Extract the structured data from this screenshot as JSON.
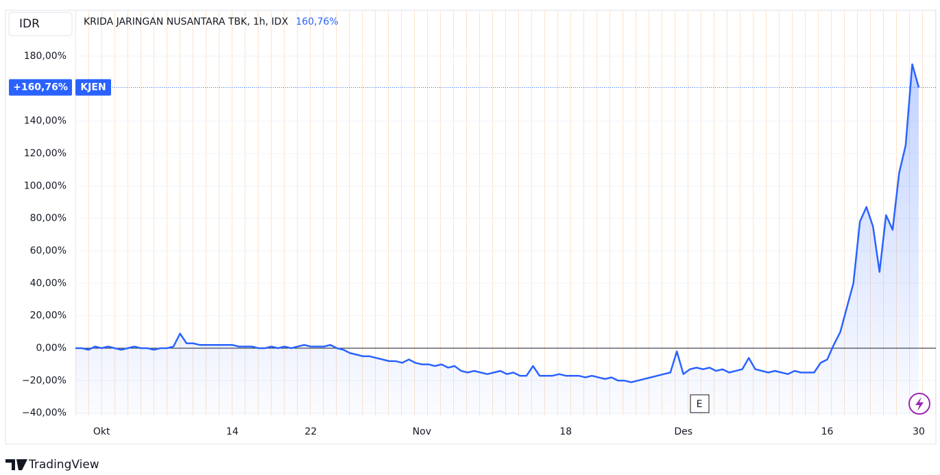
{
  "header": {
    "currency": "IDR",
    "title": "KRIDA JARINGAN NUSANTARA TBK, 1h, IDX",
    "change": "160,76%"
  },
  "chart_data": {
    "type": "line",
    "categories": [
      null,
      null,
      null,
      null,
      "Okt",
      null,
      null,
      null,
      null,
      null,
      null,
      null,
      null,
      null,
      null,
      null,
      null,
      null,
      null,
      null,
      null,
      null,
      null,
      null,
      "14",
      null,
      null,
      null,
      null,
      null,
      null,
      null,
      null,
      null,
      null,
      null,
      "22",
      null,
      null,
      null,
      null,
      null,
      null,
      null,
      null,
      null,
      null,
      null,
      null,
      null,
      null,
      null,
      null,
      "Nov",
      null,
      null,
      null,
      null,
      null,
      null,
      null,
      null,
      null,
      null,
      null,
      null,
      null,
      null,
      null,
      null,
      null,
      null,
      null,
      null,
      null,
      "18",
      null,
      null,
      null,
      null,
      null,
      null,
      null,
      null,
      null,
      null,
      null,
      null,
      null,
      null,
      null,
      null,
      null,
      "Des",
      null,
      null,
      null,
      null,
      null,
      null,
      null,
      null,
      null,
      null,
      null,
      null,
      null,
      null,
      null,
      null,
      null,
      null,
      null,
      null,
      null,
      "16",
      null,
      null,
      null,
      null,
      null,
      null,
      null,
      null,
      null,
      null,
      null,
      null,
      null,
      "30"
    ],
    "series": [
      {
        "name": "KJEN",
        "color": "#2962ff",
        "values": [
          0,
          0,
          -1,
          1,
          0,
          1,
          0,
          -1,
          0,
          1,
          0,
          0,
          -1,
          0,
          0,
          1,
          9,
          3,
          3,
          2,
          2,
          2,
          2,
          2,
          2,
          1,
          1,
          1,
          0,
          0,
          1,
          0,
          1,
          0,
          1,
          2,
          1,
          1,
          1,
          2,
          0,
          -1,
          -3,
          -4,
          -5,
          -5,
          -6,
          -7,
          -8,
          -8,
          -9,
          -7,
          -9,
          -10,
          -10,
          -11,
          -10,
          -12,
          -11,
          -14,
          -15,
          -14,
          -15,
          -16,
          -15,
          -14,
          -16,
          -15,
          -17,
          -17,
          -11,
          -17,
          -17,
          -17,
          -16,
          -17,
          -17,
          -17,
          -18,
          -17,
          -18,
          -19,
          -18,
          -20,
          -20,
          -21,
          -20,
          -19,
          -18,
          -17,
          -16,
          -15,
          -2,
          -16,
          -13,
          -12,
          -13,
          -12,
          -14,
          -13,
          -15,
          -14,
          -13,
          -6,
          -13,
          -14,
          -15,
          -14,
          -15,
          -16,
          -14,
          -15,
          -15,
          -15,
          -9,
          -7,
          2,
          10,
          25,
          40,
          78,
          87,
          75,
          47,
          82,
          73,
          108,
          125,
          175,
          160.76
        ]
      }
    ],
    "last_label": "+160,76%",
    "ylim": [
      -41,
      200
    ],
    "yticks": [
      {
        "value": -40,
        "label": "−40,00%"
      },
      {
        "value": -20,
        "label": "−20,00%"
      },
      {
        "value": 0,
        "label": "0,00%"
      },
      {
        "value": 20,
        "label": "20,00%"
      },
      {
        "value": 40,
        "label": "40,00%"
      },
      {
        "value": 60,
        "label": "60,00%"
      },
      {
        "value": 80,
        "label": "80,00%"
      },
      {
        "value": 100,
        "label": "100,00%"
      },
      {
        "value": 120,
        "label": "120,00%"
      },
      {
        "value": 140,
        "label": "140,00%"
      },
      {
        "value": 180,
        "label": "180,00%"
      }
    ],
    "grid": true,
    "event_marker": "E"
  },
  "footer": {
    "brand": "TradingView"
  }
}
